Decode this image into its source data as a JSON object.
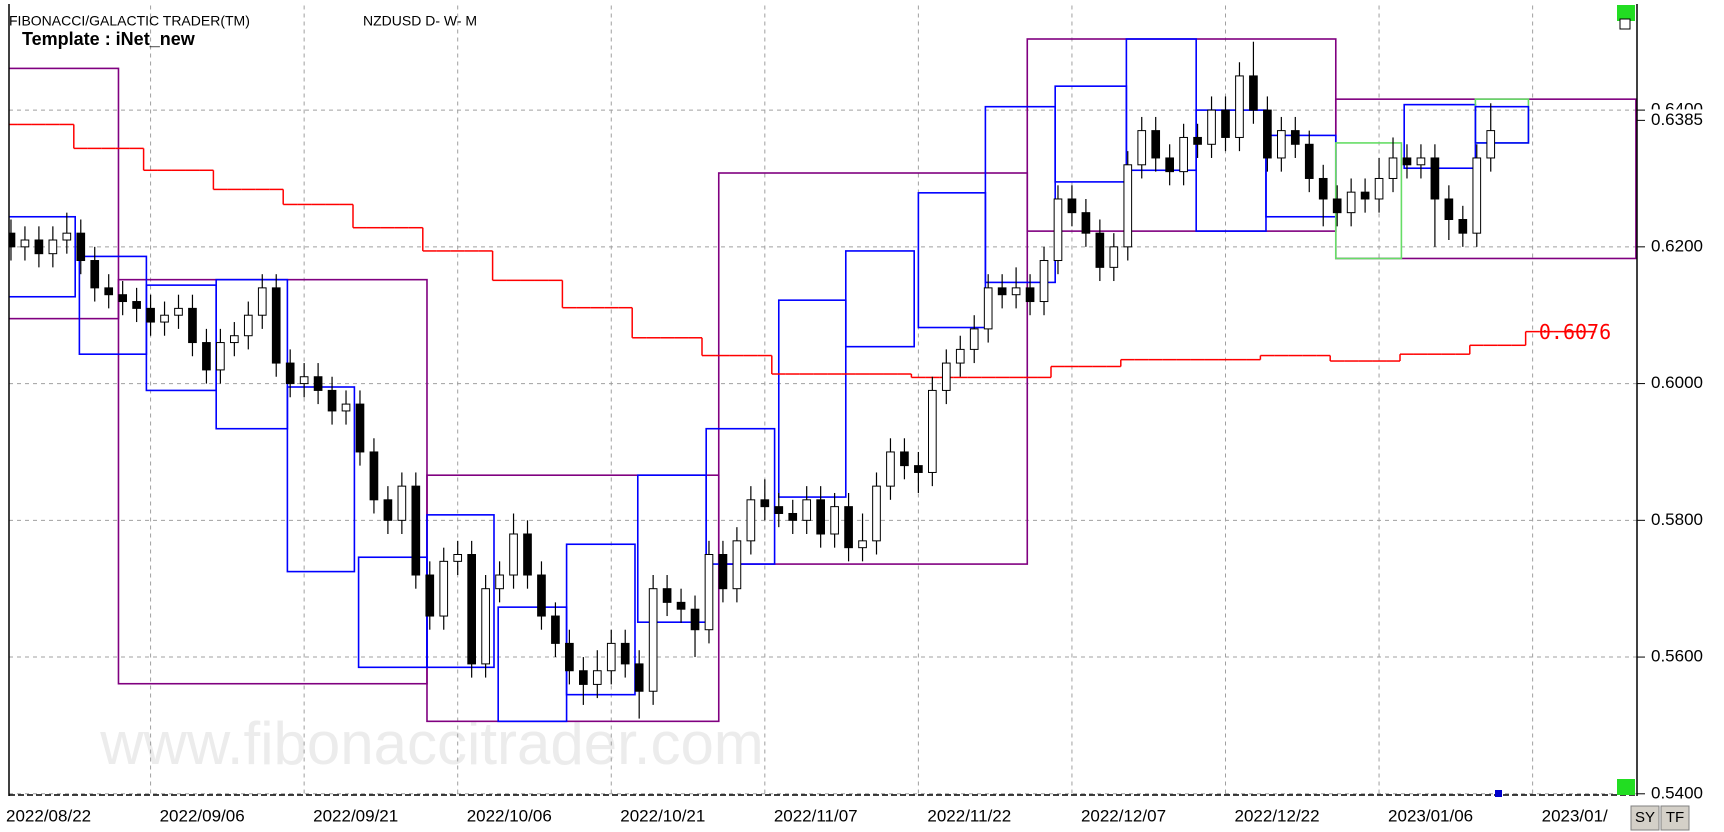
{
  "chart_data": {
    "type": "candlestick",
    "title": "FIBONACCI/GALACTIC TRADER(TM)",
    "subtitle": "NZDUSD D- W- M",
    "annotations": [
      "Template : iNet_new",
      "www.fibonaccitrader.com"
    ],
    "categories": [
      "2022/08/22",
      null,
      null,
      null,
      null,
      null,
      null,
      null,
      null,
      null,
      null,
      "2022/09/06",
      null,
      null,
      null,
      null,
      null,
      null,
      null,
      null,
      null,
      null,
      "2022/09/21",
      null,
      null,
      null,
      null,
      null,
      null,
      null,
      null,
      null,
      null,
      "2022/10/06",
      null,
      null,
      null,
      null,
      null,
      null,
      null,
      null,
      null,
      null,
      "2022/10/21",
      null,
      null,
      null,
      null,
      null,
      null,
      null,
      null,
      null,
      null,
      "2022/11/07",
      null,
      null,
      null,
      null,
      null,
      null,
      null,
      null,
      null,
      null,
      "2022/11/22",
      null,
      null,
      null,
      null,
      null,
      null,
      null,
      null,
      null,
      null,
      "2022/12/07",
      null,
      null,
      null,
      null,
      null,
      null,
      null,
      null,
      null,
      null,
      "2022/12/22",
      null,
      null,
      null,
      null,
      null,
      null,
      null,
      null,
      null,
      null,
      "2023/01/06",
      null,
      null,
      null,
      null,
      null,
      null,
      null,
      null,
      null,
      null,
      "2023/01/",
      null,
      null,
      null,
      null,
      null,
      null
    ],
    "open": [
      0.622,
      0.62,
      0.621,
      0.619,
      0.621,
      0.622,
      0.618,
      0.614,
      0.613,
      0.612,
      0.611,
      0.609,
      0.61,
      0.611,
      0.606,
      0.602,
      0.606,
      0.607,
      0.61,
      0.614,
      0.603,
      0.6,
      0.601,
      0.599,
      0.596,
      0.597,
      0.59,
      0.583,
      0.58,
      0.585,
      0.572,
      0.566,
      0.574,
      0.575,
      0.559,
      0.57,
      0.572,
      0.578,
      0.572,
      0.566,
      0.562,
      0.558,
      0.556,
      0.558,
      0.562,
      0.559,
      0.555,
      0.57,
      0.568,
      0.567,
      0.564,
      0.575,
      0.57,
      0.577,
      0.583,
      0.582,
      0.581,
      0.58,
      0.583,
      0.578,
      0.582,
      0.576,
      0.577,
      0.585,
      0.59,
      0.588,
      0.587,
      0.599,
      0.603,
      0.605,
      0.608,
      0.614,
      0.613,
      0.614,
      0.612,
      0.618,
      0.627,
      0.625,
      0.622,
      0.617,
      0.62,
      0.632,
      0.637,
      0.633,
      0.631,
      0.636,
      0.635,
      0.64,
      0.636,
      0.645,
      0.64,
      0.633,
      0.637,
      0.635,
      0.63,
      0.627,
      0.625,
      0.628,
      0.627,
      0.63,
      0.633,
      0.632,
      0.633,
      0.627,
      0.624,
      0.622,
      0.633,
      null,
      null,
      null,
      null,
      null,
      null,
      null,
      null,
      null,
      null
    ],
    "high": [
      0.624,
      0.623,
      0.623,
      0.623,
      0.625,
      0.624,
      0.62,
      0.616,
      0.615,
      0.614,
      0.613,
      0.612,
      0.613,
      0.613,
      0.608,
      0.608,
      0.609,
      0.612,
      0.616,
      0.616,
      0.605,
      0.603,
      0.603,
      0.601,
      0.599,
      0.599,
      0.592,
      0.585,
      0.587,
      0.587,
      0.574,
      0.576,
      0.577,
      0.577,
      0.572,
      0.574,
      0.581,
      0.58,
      0.574,
      0.568,
      0.564,
      0.56,
      0.561,
      0.564,
      0.564,
      0.561,
      0.572,
      0.572,
      0.57,
      0.569,
      0.577,
      0.577,
      0.579,
      0.585,
      0.586,
      0.584,
      0.583,
      0.585,
      0.585,
      0.584,
      0.584,
      0.581,
      0.587,
      0.592,
      0.592,
      0.59,
      0.601,
      0.605,
      0.607,
      0.61,
      0.616,
      0.616,
      0.617,
      0.616,
      0.62,
      0.629,
      0.629,
      0.627,
      0.624,
      0.622,
      0.634,
      0.639,
      0.639,
      0.635,
      0.638,
      0.638,
      0.642,
      0.642,
      0.647,
      0.65,
      0.642,
      0.639,
      0.639,
      0.637,
      0.632,
      0.629,
      0.63,
      0.63,
      0.633,
      0.636,
      0.635,
      0.635,
      0.635,
      0.629,
      0.626,
      0.635,
      0.641,
      null,
      null,
      null,
      null,
      null,
      null,
      null,
      null,
      null,
      null
    ],
    "low": [
      0.618,
      0.618,
      0.617,
      0.617,
      0.619,
      0.616,
      0.612,
      0.611,
      0.61,
      0.609,
      0.607,
      0.607,
      0.608,
      0.604,
      0.6,
      0.6,
      0.604,
      0.605,
      0.608,
      0.601,
      0.598,
      0.598,
      0.597,
      0.594,
      0.594,
      0.588,
      0.581,
      0.578,
      0.578,
      0.57,
      0.564,
      0.564,
      0.572,
      0.557,
      0.557,
      0.568,
      0.57,
      0.57,
      0.564,
      0.56,
      0.556,
      0.553,
      0.554,
      0.556,
      0.557,
      0.551,
      0.553,
      0.566,
      0.565,
      0.56,
      0.562,
      0.568,
      0.568,
      0.575,
      0.58,
      0.579,
      0.578,
      0.578,
      0.576,
      0.576,
      0.574,
      0.574,
      0.575,
      0.583,
      0.586,
      0.584,
      0.585,
      0.597,
      0.601,
      0.603,
      0.606,
      0.611,
      0.611,
      0.61,
      0.61,
      0.616,
      0.623,
      0.62,
      0.615,
      0.615,
      0.618,
      0.63,
      0.631,
      0.629,
      0.629,
      0.633,
      0.633,
      0.634,
      0.634,
      0.638,
      0.631,
      0.631,
      0.633,
      0.628,
      0.623,
      0.623,
      0.623,
      0.625,
      0.625,
      0.628,
      0.63,
      0.63,
      0.62,
      0.621,
      0.62,
      0.62,
      0.631,
      null,
      null,
      null,
      null,
      null,
      null,
      null,
      null,
      null,
      null
    ],
    "close": [
      0.62,
      0.621,
      0.619,
      0.621,
      0.622,
      0.618,
      0.614,
      0.613,
      0.612,
      0.611,
      0.609,
      0.61,
      0.611,
      0.606,
      0.602,
      0.606,
      0.607,
      0.61,
      0.614,
      0.603,
      0.6,
      0.601,
      0.599,
      0.596,
      0.597,
      0.59,
      0.583,
      0.58,
      0.585,
      0.572,
      0.566,
      0.574,
      0.575,
      0.559,
      0.57,
      0.572,
      0.578,
      0.572,
      0.566,
      0.562,
      0.558,
      0.556,
      0.558,
      0.562,
      0.559,
      0.555,
      0.57,
      0.568,
      0.567,
      0.564,
      0.575,
      0.57,
      0.577,
      0.583,
      0.582,
      0.581,
      0.58,
      0.583,
      0.578,
      0.582,
      0.576,
      0.577,
      0.585,
      0.59,
      0.588,
      0.587,
      0.599,
      0.603,
      0.605,
      0.608,
      0.614,
      0.613,
      0.614,
      0.612,
      0.618,
      0.627,
      0.625,
      0.622,
      0.617,
      0.62,
      0.632,
      0.637,
      0.633,
      0.631,
      0.636,
      0.635,
      0.64,
      0.636,
      0.645,
      0.64,
      0.633,
      0.637,
      0.635,
      0.63,
      0.627,
      0.625,
      0.628,
      0.627,
      0.63,
      0.633,
      0.632,
      0.633,
      0.627,
      0.624,
      0.622,
      0.633,
      0.637,
      null,
      null,
      null,
      null,
      null,
      null,
      null,
      null,
      null,
      null
    ],
    "up_color": "#ffffff",
    "down_color": "#000000",
    "ylim": [
      0.54,
      0.6553
    ],
    "yticks": [
      {
        "value": 0.54,
        "label": "0.5400"
      },
      {
        "value": 0.56,
        "label": "0.5600"
      },
      {
        "value": 0.58,
        "label": "0.5800"
      },
      {
        "value": 0.6,
        "label": "0.6000"
      },
      {
        "value": 0.62,
        "label": "0.6200"
      },
      {
        "value": 0.64,
        "label": "0.6400"
      }
    ],
    "grid": true,
    "indicator": {
      "color": "#ff0000",
      "values": [
        0.6379,
        0.6379,
        0.6379,
        0.6379,
        0.6379,
        0.6344,
        0.6344,
        0.6344,
        0.6344,
        0.6344,
        0.6312,
        0.6312,
        0.6312,
        0.6312,
        0.6312,
        0.6284,
        0.6284,
        0.6284,
        0.6284,
        0.6284,
        0.6262,
        0.6262,
        0.6262,
        0.6262,
        0.6262,
        0.6228,
        0.6228,
        0.6228,
        0.6228,
        0.6228,
        0.6194,
        0.6194,
        0.6194,
        0.6194,
        0.6194,
        0.6151,
        0.6151,
        0.6151,
        0.6151,
        0.6151,
        0.6111,
        0.6111,
        0.6111,
        0.6111,
        0.6111,
        0.6067,
        0.6067,
        0.6067,
        0.6067,
        0.6067,
        0.6041,
        0.6041,
        0.6041,
        0.6041,
        0.6041,
        0.6014,
        0.6014,
        0.6014,
        0.6014,
        0.6014,
        0.6014,
        0.6014,
        0.6014,
        0.6014,
        0.6014,
        0.6009,
        0.6009,
        0.6009,
        0.6009,
        0.6009,
        0.6009,
        0.6009,
        0.6009,
        0.6009,
        0.6009,
        0.6025,
        0.6025,
        0.6025,
        0.6025,
        0.6025,
        0.6035,
        0.6035,
        0.6035,
        0.6035,
        0.6035,
        0.6035,
        0.6035,
        0.6035,
        0.6035,
        0.6035,
        0.6041,
        0.6041,
        0.6041,
        0.6041,
        0.6041,
        0.6033,
        0.6033,
        0.6033,
        0.6033,
        0.6033,
        0.6043,
        0.6043,
        0.6043,
        0.6043,
        0.6043,
        0.6056,
        0.6056,
        0.6056,
        0.6056,
        0.6076,
        0.6076,
        0.6076,
        0.6076,
        0.6076,
        null,
        null,
        null
      ]
    },
    "boxes": [
      {
        "x": [
          -0.8,
          7.7
        ],
        "y": [
          0.6095,
          0.6461
        ],
        "color": "#800080"
      },
      {
        "x": [
          7.7,
          29.8
        ],
        "y": [
          0.5561,
          0.6152
        ],
        "color": "#800080"
      },
      {
        "x": [
          29.8,
          50.7
        ],
        "y": [
          0.5506,
          0.5866
        ],
        "color": "#800080"
      },
      {
        "x": [
          50.7,
          72.8
        ],
        "y": [
          0.5736,
          0.6308
        ],
        "color": "#800080"
      },
      {
        "x": [
          72.8,
          94.9
        ],
        "y": [
          0.6223,
          0.6504
        ],
        "color": "#800080"
      },
      {
        "x": [
          94.9,
          116.4
        ],
        "y": [
          0.6183,
          0.6416
        ],
        "color": "#800080"
      },
      {
        "x": [
          -0.2,
          4.6
        ],
        "y": [
          0.6127,
          0.6244
        ],
        "color": "#0000ff"
      },
      {
        "x": [
          4.9,
          9.7
        ],
        "y": [
          0.6043,
          0.6186
        ],
        "color": "#0000ff"
      },
      {
        "x": [
          9.7,
          14.7
        ],
        "y": [
          0.599,
          0.6144
        ],
        "color": "#0000ff"
      },
      {
        "x": [
          14.7,
          19.8
        ],
        "y": [
          0.5934,
          0.6152
        ],
        "color": "#0000ff"
      },
      {
        "x": [
          19.8,
          24.6
        ],
        "y": [
          0.5725,
          0.5995
        ],
        "color": "#0000ff"
      },
      {
        "x": [
          24.9,
          29.8
        ],
        "y": [
          0.5585,
          0.5746
        ],
        "color": "#0000ff"
      },
      {
        "x": [
          29.8,
          34.6
        ],
        "y": [
          0.5585,
          0.5808
        ],
        "color": "#0000ff"
      },
      {
        "x": [
          34.9,
          39.8
        ],
        "y": [
          0.5506,
          0.5673
        ],
        "color": "#0000ff"
      },
      {
        "x": [
          39.8,
          44.7
        ],
        "y": [
          0.5545,
          0.5765
        ],
        "color": "#0000ff"
      },
      {
        "x": [
          44.9,
          49.8
        ],
        "y": [
          0.5651,
          0.5866
        ],
        "color": "#0000ff"
      },
      {
        "x": [
          49.8,
          54.7
        ],
        "y": [
          0.5736,
          0.5934
        ],
        "color": "#0000ff"
      },
      {
        "x": [
          55,
          59.8
        ],
        "y": [
          0.5834,
          0.6122
        ],
        "color": "#0000ff"
      },
      {
        "x": [
          59.8,
          64.7
        ],
        "y": [
          0.6054,
          0.6194
        ],
        "color": "#0000ff"
      },
      {
        "x": [
          65,
          69.8
        ],
        "y": [
          0.6082,
          0.6279
        ],
        "color": "#0000ff"
      },
      {
        "x": [
          69.8,
          74.8
        ],
        "y": [
          0.6148,
          0.6405
        ],
        "color": "#0000ff"
      },
      {
        "x": [
          74.8,
          79.9
        ],
        "y": [
          0.6295,
          0.6435
        ],
        "color": "#0000ff"
      },
      {
        "x": [
          79.9,
          84.9
        ],
        "y": [
          0.6312,
          0.6504
        ],
        "color": "#0000ff"
      },
      {
        "x": [
          84.9,
          89.9
        ],
        "y": [
          0.6223,
          0.64
        ],
        "color": "#0000ff"
      },
      {
        "x": [
          89.9,
          94.9
        ],
        "y": [
          0.6244,
          0.6363
        ],
        "color": "#0000ff"
      },
      {
        "x": [
          94.9,
          99.6
        ],
        "y": [
          0.6183,
          0.6352
        ],
        "color": "#66dd66"
      },
      {
        "x": [
          99.8,
          104.9
        ],
        "y": [
          0.6315,
          0.6408
        ],
        "color": "#0000ff"
      },
      {
        "x": [
          104.9,
          108.7
        ],
        "y": [
          0.6352,
          0.6416
        ],
        "color": "#66dd66"
      },
      {
        "x": [
          104.9,
          108.7
        ],
        "y": [
          0.6352,
          0.6405
        ],
        "color": "#0000ff"
      }
    ],
    "price_labels": [
      {
        "value": 0.6385,
        "label": "0.6385",
        "color": "#000000"
      },
      {
        "value": 0.6076,
        "label": "0.6076",
        "color": "#ff0000"
      }
    ]
  },
  "toolbar": [
    "SY",
    "TF"
  ]
}
